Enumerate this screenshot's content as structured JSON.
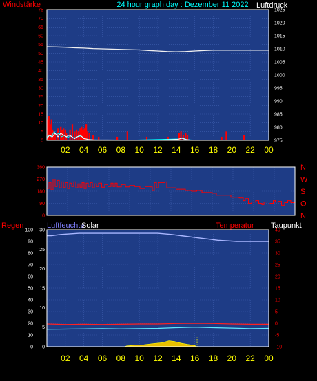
{
  "header": {
    "left_label": "Windstärke",
    "title": "24 hour graph day : Dezember 11 2022",
    "right_label": "Luftdruck"
  },
  "colors": {
    "background": "#000000",
    "plot_bg": "#1e3c86",
    "grid": "#3f5fb0",
    "frame": "#ffffff",
    "red": "#ff0000",
    "yellow": "#ffff00",
    "cyan": "#00ffff",
    "white": "#ffffff",
    "violet": "#8080ff",
    "gold": "#e8c000",
    "pressure_line": "#f0f0f0",
    "humidity_line": "#a9b6ff",
    "temp_line": "#ff2020",
    "dew_line": "#60e6ff"
  },
  "chart_data": [
    {
      "type": "bar",
      "name": "wind_pressure",
      "x_ticks": [
        "02",
        "04",
        "06",
        "08",
        "10",
        "12",
        "14",
        "16",
        "18",
        "20",
        "22",
        "00"
      ],
      "left_axis": {
        "label": "Windstärke",
        "range": [
          0,
          75
        ],
        "ticks": [
          0,
          5,
          10,
          15,
          20,
          25,
          30,
          35,
          40,
          45,
          50,
          55,
          60,
          65,
          70,
          75
        ]
      },
      "right_axis": {
        "label": "Luftdruck",
        "range": [
          975,
          1025
        ],
        "ticks": [
          975,
          980,
          985,
          990,
          995,
          1000,
          1005,
          1010,
          1015,
          1020,
          1025
        ]
      },
      "pressure_hpa": [
        [
          0,
          1010.8
        ],
        [
          1,
          1010.7
        ],
        [
          2,
          1010.6
        ],
        [
          3,
          1010.4
        ],
        [
          4,
          1010.3
        ],
        [
          5,
          1010.1
        ],
        [
          6,
          1010.0
        ],
        [
          7,
          1009.9
        ],
        [
          8,
          1009.8
        ],
        [
          9,
          1009.7
        ],
        [
          10,
          1009.6
        ],
        [
          11,
          1009.4
        ],
        [
          12,
          1009.2
        ],
        [
          13,
          1009.0
        ],
        [
          14,
          1008.9
        ],
        [
          15,
          1009.0
        ],
        [
          16,
          1009.2
        ],
        [
          17,
          1009.4
        ],
        [
          18,
          1009.5
        ],
        [
          19,
          1009.5
        ],
        [
          20,
          1009.5
        ],
        [
          21,
          1009.5
        ],
        [
          22,
          1009.5
        ],
        [
          23,
          1009.5
        ],
        [
          24,
          1009.5
        ]
      ],
      "gust_bars": [
        [
          0.1,
          12
        ],
        [
          0.2,
          14
        ],
        [
          0.35,
          9
        ],
        [
          0.5,
          12
        ],
        [
          0.6,
          6
        ],
        [
          0.75,
          5
        ],
        [
          0.9,
          4
        ],
        [
          1.2,
          7
        ],
        [
          1.5,
          8
        ],
        [
          1.65,
          6
        ],
        [
          1.8,
          7
        ],
        [
          2.0,
          6
        ],
        [
          2.1,
          4
        ],
        [
          2.5,
          6
        ],
        [
          2.75,
          9
        ],
        [
          3.0,
          5
        ],
        [
          3.2,
          6
        ],
        [
          3.4,
          5
        ],
        [
          3.6,
          7
        ],
        [
          3.75,
          8
        ],
        [
          3.9,
          6
        ],
        [
          4.05,
          7
        ],
        [
          4.25,
          9
        ],
        [
          4.4,
          5
        ],
        [
          4.6,
          4
        ],
        [
          5.0,
          3
        ],
        [
          5.6,
          2
        ],
        [
          7.6,
          2
        ],
        [
          8.7,
          5
        ],
        [
          10.8,
          2
        ],
        [
          13.1,
          2
        ],
        [
          14.3,
          4
        ],
        [
          14.5,
          5
        ],
        [
          14.75,
          3
        ],
        [
          15.0,
          4
        ],
        [
          15.2,
          3
        ],
        [
          18.9,
          2
        ],
        [
          19.4,
          5
        ],
        [
          21.3,
          3
        ]
      ],
      "wind_avg": [
        [
          0,
          1
        ],
        [
          0.3,
          3
        ],
        [
          0.6,
          2
        ],
        [
          0.9,
          4
        ],
        [
          1.2,
          2
        ],
        [
          1.5,
          4
        ],
        [
          1.8,
          3
        ],
        [
          2.1,
          2
        ],
        [
          2.4,
          3
        ],
        [
          2.7,
          2
        ],
        [
          3.0,
          1
        ],
        [
          3.3,
          2
        ],
        [
          3.6,
          3
        ],
        [
          4.0,
          1
        ],
        [
          4.5,
          0.5
        ],
        [
          5,
          0.3
        ],
        [
          8,
          0.2
        ],
        [
          12,
          0.1
        ],
        [
          14.2,
          0.6
        ],
        [
          14.6,
          1.2
        ],
        [
          15.0,
          0.5
        ],
        [
          15.5,
          0.2
        ],
        [
          24,
          0.1
        ]
      ],
      "wind_speed": [
        [
          0,
          1.5
        ],
        [
          0.2,
          3
        ],
        [
          0.5,
          2
        ],
        [
          0.8,
          5
        ],
        [
          1.0,
          3
        ],
        [
          1.3,
          4
        ],
        [
          1.6,
          2
        ],
        [
          1.9,
          3
        ],
        [
          2.2,
          1.5
        ],
        [
          2.6,
          2.5
        ],
        [
          2.9,
          1.2
        ],
        [
          3.3,
          2
        ],
        [
          3.7,
          2.5
        ],
        [
          4.1,
          1
        ],
        [
          4.6,
          0.3
        ],
        [
          5.5,
          0.2
        ],
        [
          9,
          0.1
        ],
        [
          14.3,
          0.8
        ],
        [
          14.7,
          1.5
        ],
        [
          15.1,
          0.4
        ],
        [
          16,
          0.1
        ],
        [
          24,
          0.1
        ]
      ]
    },
    {
      "type": "line",
      "name": "wind_direction",
      "x_ticks": [
        "02",
        "04",
        "06",
        "08",
        "10",
        "12",
        "14",
        "16",
        "18",
        "20",
        "22",
        "00"
      ],
      "left_axis": {
        "range": [
          0,
          360
        ],
        "ticks": [
          0,
          90,
          180,
          270,
          360
        ]
      },
      "right_axis_labels": [
        "N",
        "W",
        "S",
        "O",
        "N"
      ],
      "direction_deg": [
        [
          0,
          200
        ],
        [
          0.2,
          245
        ],
        [
          0.4,
          190
        ],
        [
          0.6,
          270
        ],
        [
          0.8,
          215
        ],
        [
          1.0,
          260
        ],
        [
          1.2,
          205
        ],
        [
          1.4,
          250
        ],
        [
          1.6,
          210
        ],
        [
          1.8,
          245
        ],
        [
          2.0,
          200
        ],
        [
          2.2,
          240
        ],
        [
          2.4,
          215
        ],
        [
          2.6,
          250
        ],
        [
          2.8,
          205
        ],
        [
          3.0,
          235
        ],
        [
          3.2,
          210
        ],
        [
          3.4,
          245
        ],
        [
          3.6,
          200
        ],
        [
          3.8,
          240
        ],
        [
          4.0,
          215
        ],
        [
          4.2,
          245
        ],
        [
          4.4,
          205
        ],
        [
          4.6,
          235
        ],
        [
          4.8,
          215
        ],
        [
          5.0,
          240
        ],
        [
          5.3,
          210
        ],
        [
          5.6,
          230
        ],
        [
          5.9,
          215
        ],
        [
          6.2,
          240
        ],
        [
          6.4,
          215
        ],
        [
          6.6,
          240
        ],
        [
          6.8,
          212
        ],
        [
          7.2,
          230
        ],
        [
          7.6,
          212
        ],
        [
          8.0,
          222
        ],
        [
          8.5,
          215
        ],
        [
          9.0,
          200
        ],
        [
          9.5,
          215
        ],
        [
          10.0,
          212
        ],
        [
          10.2,
          185
        ],
        [
          10.4,
          245
        ],
        [
          10.6,
          205
        ],
        [
          10.8,
          245
        ],
        [
          11.4,
          250
        ],
        [
          11.6,
          205
        ],
        [
          12.2,
          205
        ],
        [
          12.5,
          195
        ],
        [
          13.0,
          195
        ],
        [
          13.4,
          185
        ],
        [
          14.0,
          180
        ],
        [
          14.5,
          185
        ],
        [
          15.0,
          170
        ],
        [
          15.5,
          170
        ],
        [
          16.0,
          165
        ],
        [
          16.4,
          150
        ],
        [
          16.8,
          150
        ],
        [
          17.3,
          150
        ],
        [
          17.8,
          135
        ],
        [
          18.2,
          135
        ],
        [
          18.6,
          130
        ],
        [
          19.0,
          110
        ],
        [
          19.2,
          125
        ],
        [
          19.5,
          90
        ],
        [
          19.8,
          100
        ],
        [
          20.2,
          110
        ],
        [
          20.5,
          90
        ],
        [
          20.8,
          80
        ],
        [
          21.0,
          100
        ],
        [
          21.3,
          85
        ],
        [
          21.6,
          90
        ],
        [
          21.9,
          110
        ],
        [
          22.1,
          100
        ],
        [
          22.4,
          105
        ],
        [
          22.7,
          75
        ],
        [
          23.0,
          95
        ],
        [
          23.3,
          110
        ],
        [
          23.6,
          95
        ],
        [
          24.0,
          100
        ]
      ]
    },
    {
      "type": "line",
      "name": "climate",
      "labels": {
        "rain": "Regen",
        "humidity": "Luftfeuchte",
        "solar": "Solar",
        "temperature": "Temperatur",
        "dewpoint": "Taupunkt"
      },
      "x_ticks": [
        "02",
        "04",
        "06",
        "08",
        "10",
        "12",
        "14",
        "16",
        "18",
        "20",
        "22",
        "00"
      ],
      "rain_axis": {
        "range": [
          0,
          100
        ],
        "ticks": [
          0,
          10,
          20,
          30,
          40,
          50,
          60,
          70,
          80,
          90,
          100
        ]
      },
      "solar_axis": {
        "range": [
          0,
          30
        ],
        "ticks": [
          0,
          5,
          10,
          15,
          20,
          25,
          30
        ]
      },
      "temp_axis": {
        "range": [
          -10,
          40
        ],
        "ticks": [
          -10,
          -5,
          0,
          5,
          10,
          15,
          20,
          25,
          30,
          35,
          40
        ]
      },
      "humidity_pct": [
        [
          0,
          95
        ],
        [
          0.5,
          95
        ],
        [
          1.5,
          96
        ],
        [
          3.5,
          97
        ],
        [
          4.5,
          97
        ],
        [
          8,
          97
        ],
        [
          10,
          97
        ],
        [
          12,
          97
        ],
        [
          13.5,
          96
        ],
        [
          14.5,
          95
        ],
        [
          15.5,
          94
        ],
        [
          16.5,
          93
        ],
        [
          17.5,
          92
        ],
        [
          18.5,
          91
        ],
        [
          19.5,
          90.5
        ],
        [
          20.5,
          90
        ],
        [
          22,
          90
        ],
        [
          24,
          90
        ]
      ],
      "temperature_c": [
        [
          0,
          -0.3
        ],
        [
          2,
          -0.5
        ],
        [
          4,
          -0.4
        ],
        [
          6,
          -0.5
        ],
        [
          8,
          -0.4
        ],
        [
          10,
          -0.3
        ],
        [
          12,
          -0.3
        ],
        [
          14,
          -0.1
        ],
        [
          16,
          0.0
        ],
        [
          18,
          -0.1
        ],
        [
          20,
          -0.3
        ],
        [
          22,
          -0.4
        ],
        [
          24,
          -0.4
        ]
      ],
      "dewpoint_c": [
        [
          0,
          -2.6
        ],
        [
          2,
          -2.5
        ],
        [
          4,
          -2.4
        ],
        [
          6,
          -2.3
        ],
        [
          8,
          -2.4
        ],
        [
          10,
          -2.3
        ],
        [
          12,
          -2.2
        ],
        [
          14,
          -1.9
        ],
        [
          15,
          -1.8
        ],
        [
          16,
          -1.7
        ],
        [
          18,
          -1.9
        ],
        [
          20,
          -2.1
        ],
        [
          22,
          -2.3
        ],
        [
          24,
          -2.2
        ]
      ],
      "solar_wm2": [
        [
          8.4,
          0
        ],
        [
          8.6,
          0.2
        ],
        [
          9.5,
          0.4
        ],
        [
          10.5,
          0.5
        ],
        [
          11.5,
          0.8
        ],
        [
          12.5,
          1.0
        ],
        [
          13.2,
          1.5
        ],
        [
          13.8,
          1.3
        ],
        [
          14.5,
          0.9
        ],
        [
          15.2,
          0.6
        ],
        [
          16.0,
          0.3
        ],
        [
          16.2,
          0
        ]
      ],
      "sunrise_hour": 8.45,
      "sunset_hour": 16.25
    }
  ]
}
